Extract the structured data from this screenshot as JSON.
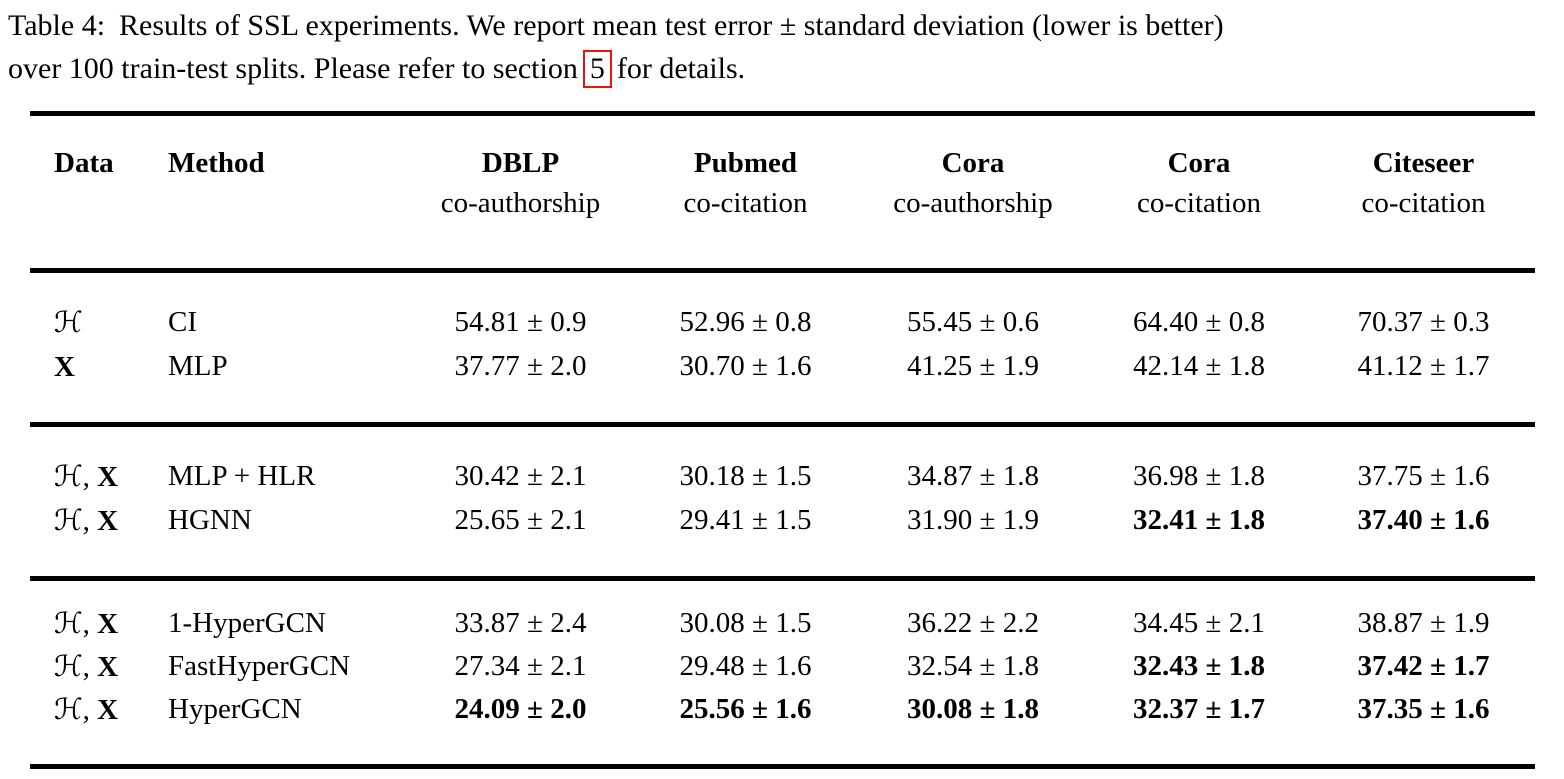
{
  "caption": {
    "label": "Table 4:",
    "line1": "Results of SSL experiments. We report mean test error ± standard deviation (lower is better)",
    "line2_pre": "over 100 train-test splits. Please refer to section",
    "line2_ref": "5",
    "line2_post": "for details."
  },
  "colors": {
    "text": "#000000",
    "rule": "#000000",
    "link_box": "#ee1208",
    "background": "#ffffff"
  },
  "table": {
    "columns": [
      {
        "label": "Data",
        "sublabel": ""
      },
      {
        "label": "Method",
        "sublabel": ""
      },
      {
        "label": "DBLP",
        "sublabel": "co-authorship"
      },
      {
        "label": "Pubmed",
        "sublabel": "co-citation"
      },
      {
        "label": "Cora",
        "sublabel": "co-authorship"
      },
      {
        "label": "Cora",
        "sublabel": "co-citation"
      },
      {
        "label": "Citeseer",
        "sublabel": "co-citation"
      }
    ],
    "groups": [
      {
        "rows": [
          {
            "data_h": "ℋ",
            "data_sep": "",
            "data_x": "",
            "method": "CI",
            "cells": [
              {
                "v": "54.81 ± 0.9",
                "bold": false
              },
              {
                "v": "52.96 ± 0.8",
                "bold": false
              },
              {
                "v": "55.45 ± 0.6",
                "bold": false
              },
              {
                "v": "64.40 ± 0.8",
                "bold": false
              },
              {
                "v": "70.37 ± 0.3",
                "bold": false
              }
            ]
          },
          {
            "data_h": "",
            "data_sep": "",
            "data_x": "X",
            "method": "MLP",
            "cells": [
              {
                "v": "37.77 ± 2.0",
                "bold": false
              },
              {
                "v": "30.70 ± 1.6",
                "bold": false
              },
              {
                "v": "41.25 ± 1.9",
                "bold": false
              },
              {
                "v": "42.14 ± 1.8",
                "bold": false
              },
              {
                "v": "41.12 ± 1.7",
                "bold": false
              }
            ]
          }
        ]
      },
      {
        "rows": [
          {
            "data_h": "ℋ",
            "data_sep": ", ",
            "data_x": "X",
            "method": "MLP + HLR",
            "cells": [
              {
                "v": "30.42 ± 2.1",
                "bold": false
              },
              {
                "v": "30.18 ± 1.5",
                "bold": false
              },
              {
                "v": "34.87 ± 1.8",
                "bold": false
              },
              {
                "v": "36.98 ± 1.8",
                "bold": false
              },
              {
                "v": "37.75 ± 1.6",
                "bold": false
              }
            ]
          },
          {
            "data_h": "ℋ",
            "data_sep": ", ",
            "data_x": "X",
            "method": "HGNN",
            "cells": [
              {
                "v": "25.65 ± 2.1",
                "bold": false
              },
              {
                "v": "29.41 ± 1.5",
                "bold": false
              },
              {
                "v": "31.90 ± 1.9",
                "bold": false
              },
              {
                "v": "32.41 ± 1.8",
                "bold": true
              },
              {
                "v": "37.40 ± 1.6",
                "bold": true
              }
            ]
          }
        ]
      },
      {
        "rows": [
          {
            "data_h": "ℋ",
            "data_sep": ", ",
            "data_x": "X",
            "method": "1-HyperGCN",
            "cells": [
              {
                "v": "33.87 ± 2.4",
                "bold": false
              },
              {
                "v": "30.08 ± 1.5",
                "bold": false
              },
              {
                "v": "36.22 ± 2.2",
                "bold": false
              },
              {
                "v": "34.45 ± 2.1",
                "bold": false
              },
              {
                "v": "38.87 ± 1.9",
                "bold": false
              }
            ]
          },
          {
            "data_h": "ℋ",
            "data_sep": ", ",
            "data_x": "X",
            "method": "FastHyperGCN",
            "cells": [
              {
                "v": "27.34 ± 2.1",
                "bold": false
              },
              {
                "v": "29.48 ± 1.6",
                "bold": false
              },
              {
                "v": "32.54 ± 1.8",
                "bold": false
              },
              {
                "v": "32.43 ± 1.8",
                "bold": true
              },
              {
                "v": "37.42 ± 1.7",
                "bold": true
              }
            ]
          },
          {
            "data_h": "ℋ",
            "data_sep": ", ",
            "data_x": "X",
            "method": "HyperGCN",
            "cells": [
              {
                "v": "24.09 ± 2.0",
                "bold": true
              },
              {
                "v": "25.56 ± 1.6",
                "bold": true
              },
              {
                "v": "30.08 ± 1.8",
                "bold": true
              },
              {
                "v": "32.37 ± 1.7",
                "bold": true
              },
              {
                "v": "37.35 ± 1.6",
                "bold": true
              }
            ]
          }
        ]
      }
    ]
  }
}
